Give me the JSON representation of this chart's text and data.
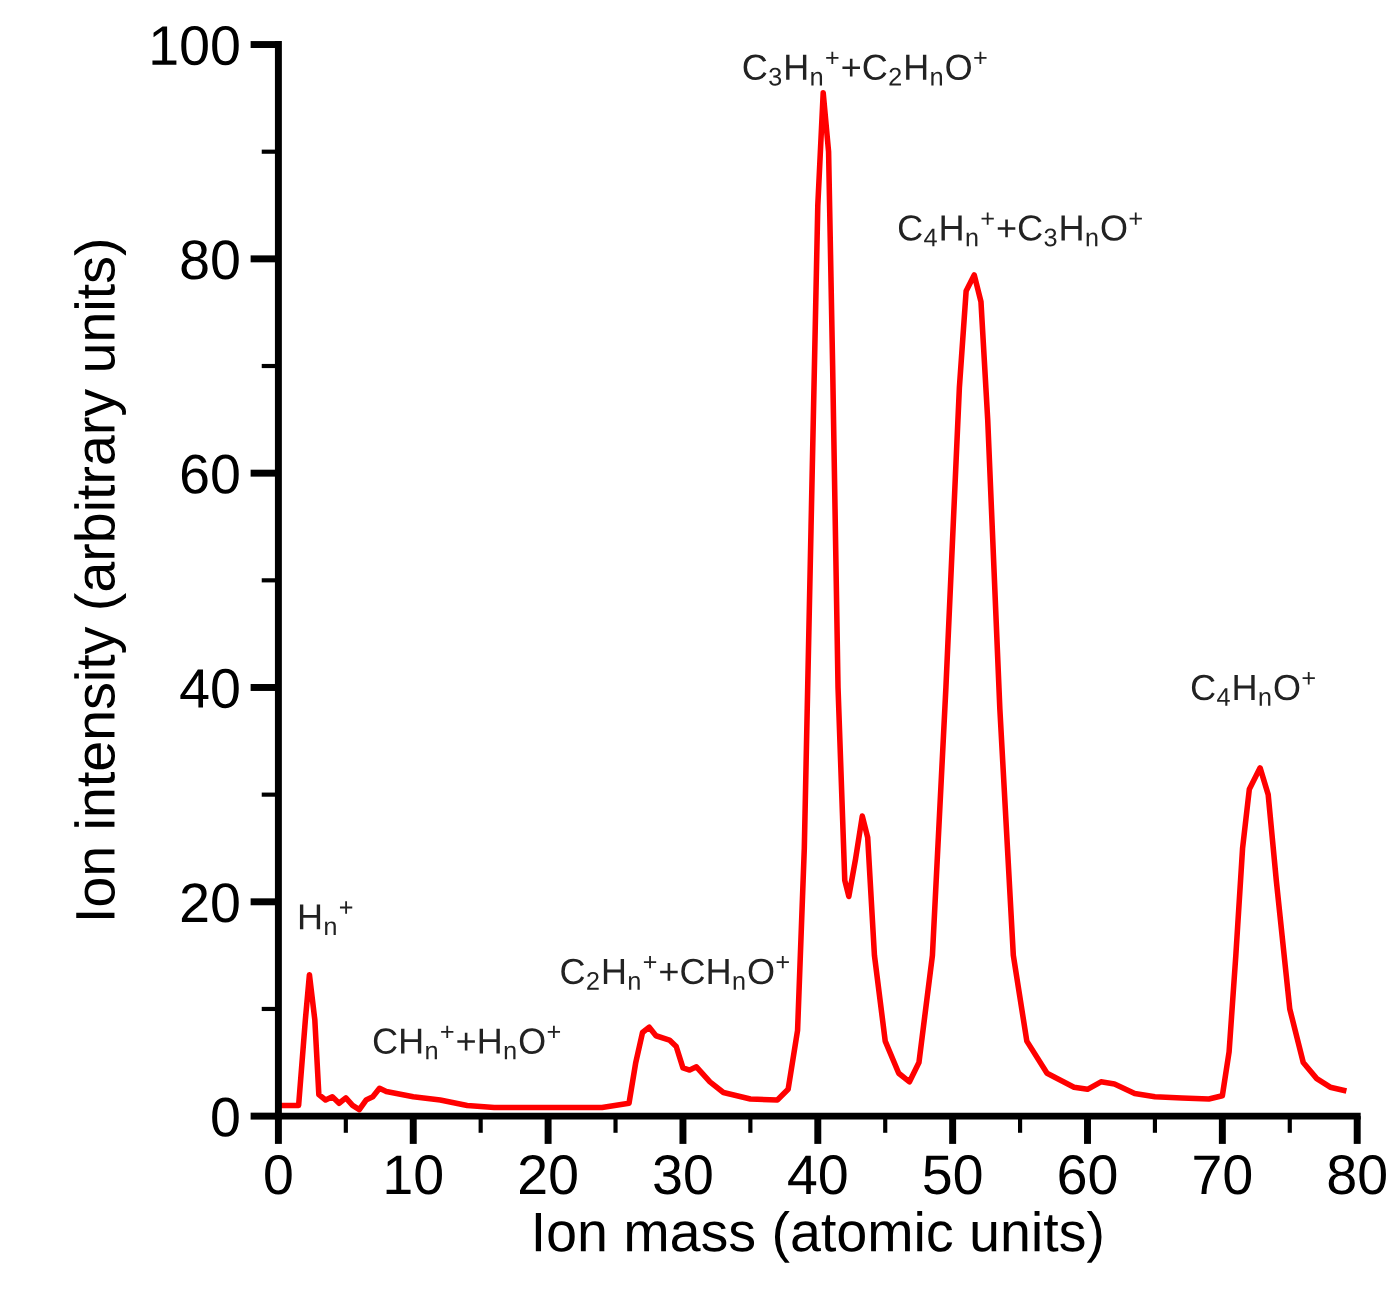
{
  "chart_data": {
    "type": "line",
    "xlabel": "Ion mass (atomic units)",
    "ylabel": "Ion intensity (arbitrary units)",
    "xlim": [
      0,
      80
    ],
    "ylim": [
      0,
      100
    ],
    "xticks": [
      0,
      {
        "value": 5,
        "label": null
      },
      10,
      {
        "value": 15,
        "label": null
      },
      20,
      {
        "value": 25,
        "label": null
      },
      30,
      {
        "value": 35,
        "label": null
      },
      40,
      {
        "value": 45,
        "label": null
      },
      50,
      {
        "value": 55,
        "label": null
      },
      60,
      {
        "value": 65,
        "label": null
      },
      70,
      {
        "value": 75,
        "label": null
      },
      80
    ],
    "yticks": [
      0,
      {
        "value": 10,
        "label": null
      },
      20,
      {
        "value": 30,
        "label": null
      },
      40,
      {
        "value": 50,
        "label": null
      },
      60,
      {
        "value": 70,
        "label": null
      },
      80,
      {
        "value": 90,
        "label": null
      },
      100
    ],
    "grid": false,
    "legend": false,
    "marker": "none",
    "line_style": "solid",
    "series": [
      {
        "color": "#ff0000",
        "x": [
          0,
          1.5,
          2.0,
          2.3,
          2.7,
          3.0,
          3.5,
          4,
          4.5,
          5,
          5.5,
          6,
          6.5,
          7,
          7.5,
          8,
          10,
          12,
          14,
          16,
          20,
          24,
          26,
          26.5,
          27,
          27.5,
          28,
          29,
          29.5,
          30,
          30.5,
          31,
          32,
          33,
          35,
          37,
          37.8,
          38.5,
          39,
          39.5,
          40,
          40.4,
          40.8,
          41.1,
          41.5,
          42,
          42.3,
          42.8,
          43.3,
          43.7,
          44.2,
          45,
          46,
          46.8,
          47.5,
          48.5,
          49.5,
          50.5,
          51,
          51.6,
          52.1,
          52.6,
          53.5,
          54.5,
          55.5,
          57,
          59,
          60,
          61,
          62,
          63.5,
          65,
          67,
          69,
          70,
          70.5,
          71,
          71.5,
          72,
          72.8,
          73.4,
          74,
          75,
          76,
          77,
          78,
          79
        ],
        "values": [
          1.0,
          1.0,
          9,
          13.2,
          9,
          2,
          1.5,
          1.8,
          1.2,
          1.7,
          1.0,
          0.6,
          1.5,
          1.8,
          2.6,
          2.3,
          1.8,
          1.5,
          1.0,
          0.8,
          0.8,
          0.8,
          1.2,
          5,
          7.8,
          8.3,
          7.5,
          7.1,
          6.5,
          4.5,
          4.3,
          4.6,
          3.2,
          2.2,
          1.6,
          1.5,
          2.5,
          8,
          25,
          55,
          85,
          95.5,
          90,
          70,
          40,
          22,
          20.5,
          24,
          28,
          26,
          15,
          7,
          4,
          3.2,
          5,
          15,
          40,
          68,
          77,
          78.5,
          76,
          65,
          38,
          15,
          7,
          4,
          2.7,
          2.5,
          3.2,
          3,
          2.1,
          1.8,
          1.7,
          1.6,
          1.9,
          6,
          15,
          25,
          30.5,
          32.5,
          30,
          22,
          10,
          5,
          3.5,
          2.7,
          2.4
        ]
      }
    ],
    "annotations": [
      "H$_{n}$$^{+}$",
      "CH$_{n}$$^{+}$+H$_{n}$O$^{+}$",
      "C$_{2}$H$_{n}$$^{+}$+CH$_{n}$O$^{+}$",
      "C$_{3}$H$_{n}$$^{+}$+C$_{2}$H$_{n}$O$^{+}$",
      "C$_{4}$H$_{n}$$^{+}$+C$_{3}$H$_{n}$O$^{+}$",
      "C$_{4}$H$_{n}$O$^{+}$"
    ]
  }
}
